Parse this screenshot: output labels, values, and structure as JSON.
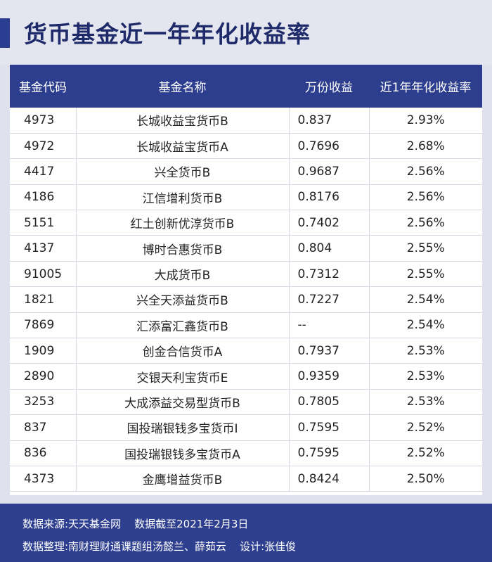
{
  "title": "货币基金近一年年化收益率",
  "table": {
    "headers": [
      "基金代码",
      "基金名称",
      "万份收益",
      "近1年年化收益率"
    ],
    "rows": [
      {
        "code": "4973",
        "name": "长城收益宝货币B",
        "yield": "0.837",
        "rate": "2.93%"
      },
      {
        "code": "4972",
        "name": "长城收益宝货币A",
        "yield": "0.7696",
        "rate": "2.68%"
      },
      {
        "code": "4417",
        "name": "兴全货币B",
        "yield": "0.9687",
        "rate": "2.56%"
      },
      {
        "code": "4186",
        "name": "江信增利货币B",
        "yield": "0.8176",
        "rate": "2.56%"
      },
      {
        "code": "5151",
        "name": "红土创新优淳货币B",
        "yield": "0.7402",
        "rate": "2.56%"
      },
      {
        "code": "4137",
        "name": "博时合惠货币B",
        "yield": "0.804",
        "rate": "2.55%"
      },
      {
        "code": "91005",
        "name": "大成货币B",
        "yield": "0.7312",
        "rate": "2.55%"
      },
      {
        "code": "1821",
        "name": "兴全天添益货币B",
        "yield": "0.7227",
        "rate": "2.54%"
      },
      {
        "code": "7869",
        "name": "汇添富汇鑫货币B",
        "yield": "--",
        "rate": "2.54%"
      },
      {
        "code": "1909",
        "name": "创金合信货币A",
        "yield": "0.7937",
        "rate": "2.53%"
      },
      {
        "code": "2890",
        "name": "交银天利宝货币E",
        "yield": "0.9359",
        "rate": "2.53%"
      },
      {
        "code": "3253",
        "name": "大成添益交易型货币B",
        "yield": "0.7805",
        "rate": "2.53%"
      },
      {
        "code": "837",
        "name": "国投瑞银钱多宝货币I",
        "yield": "0.7595",
        "rate": "2.52%"
      },
      {
        "code": "836",
        "name": "国投瑞银钱多宝货币A",
        "yield": "0.7595",
        "rate": "2.52%"
      },
      {
        "code": "4373",
        "name": "金鹰增益货币B",
        "yield": "0.8424",
        "rate": "2.50%"
      }
    ]
  },
  "footer": {
    "line1": "数据来源:天天基金网    数据截至2021年2月3日",
    "line2": "数据整理:南财理财通课题组汤懿兰、薛茹云    设计:张佳俊"
  },
  "colors": {
    "accent": "#2d3e8f",
    "title": "#1e2a6a",
    "background": "#dfe2ec"
  }
}
